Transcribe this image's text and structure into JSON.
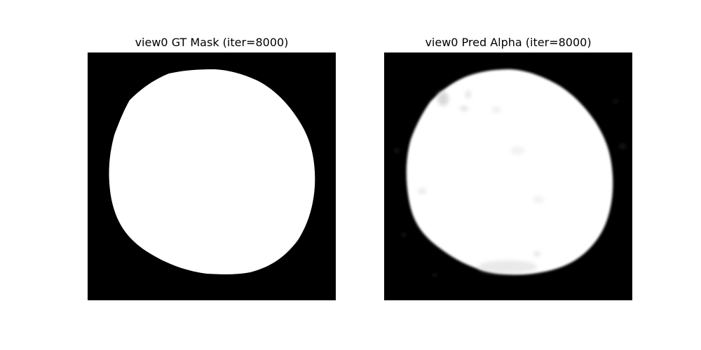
{
  "figure": {
    "panels": [
      {
        "title": "view0 GT Mask (iter=8000)",
        "background_color": "#000000",
        "foreground_color": "#ffffff"
      },
      {
        "title": "view0 Pred Alpha (iter=8000)",
        "background_color": "#000000",
        "foreground_color": "#ffffff"
      }
    ]
  }
}
